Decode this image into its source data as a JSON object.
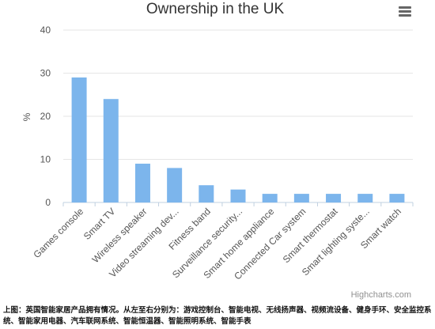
{
  "chart_data": {
    "type": "bar",
    "title": "Ownership in the UK",
    "ylabel": "%",
    "xlabel": "",
    "ylim": [
      0,
      40
    ],
    "yticks": [
      0,
      10,
      20,
      30,
      40
    ],
    "grid": true,
    "legend": "none",
    "categories": [
      "Games console",
      "Smart TV",
      "Wireless speaker",
      "Video streaming dev...",
      "Fitness band",
      "Surveillance security...",
      "Smart home appliance",
      "Connected Car system",
      "Smart thermostat",
      "Smart lighting syste...",
      "Smart watch"
    ],
    "values": [
      29,
      24,
      9,
      8,
      4,
      3,
      2,
      2,
      2,
      2,
      2
    ],
    "bar_color": "#7cb5ec",
    "grid_color": "#e6e6e6",
    "credit": "Highcharts.com"
  },
  "menu": {
    "icon": "hamburger-menu-icon"
  },
  "caption": "上图：英国智能家居产品拥有情况。从左至右分别为：游戏控制台、智能电视、无线扬声器、视频流设备、健身手环、安全监控系统、智能家用电器、汽车联网系统、智能恒温器、智能照明系统、智能手表"
}
